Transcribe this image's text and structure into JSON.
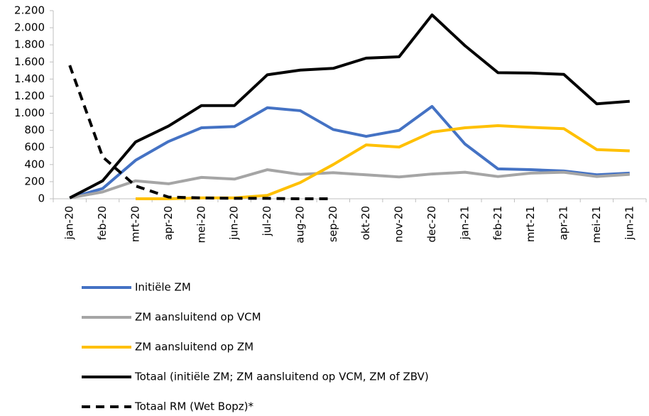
{
  "chart_data": {
    "type": "line",
    "categories": [
      "jan-20",
      "feb-20",
      "mrt-20",
      "apr-20",
      "mei-20",
      "jun-20",
      "jul-20",
      "aug-20",
      "sep-20",
      "okt-20",
      "nov-20",
      "dec-20",
      "jan-21",
      "feb-21",
      "mrt-21",
      "apr-21",
      "mei-21",
      "jun-21"
    ],
    "series": [
      {
        "name": "Initiële ZM",
        "color": "#4472c4",
        "values": [
          10,
          120,
          450,
          670,
          830,
          845,
          1065,
          1030,
          810,
          730,
          800,
          1080,
          640,
          350,
          340,
          325,
          280,
          300
        ]
      },
      {
        "name": "ZM aansluitend op VCM",
        "color": "#a5a5a5",
        "values": [
          10,
          80,
          210,
          175,
          250,
          230,
          340,
          285,
          305,
          280,
          255,
          290,
          310,
          260,
          300,
          310,
          260,
          285
        ]
      },
      {
        "name": "ZM aansluitend op ZM",
        "color": "#ffc000",
        "values": [
          null,
          null,
          0,
          0,
          10,
          10,
          40,
          190,
          400,
          630,
          605,
          780,
          830,
          855,
          835,
          820,
          575,
          560
        ]
      },
      {
        "name": "Totaal (initiële ZM; ZM aansluitend op VCM, ZM of ZBV)",
        "color": "#000000",
        "values": [
          10,
          210,
          665,
          850,
          1090,
          1090,
          1450,
          1505,
          1525,
          1645,
          1660,
          2150,
          1790,
          1475,
          1470,
          1455,
          1110,
          1140
        ]
      },
      {
        "name": "Totaal RM (Wet Bopz)*",
        "color": "#000000",
        "dashed": true,
        "values": [
          1560,
          490,
          150,
          20,
          10,
          5,
          5,
          0,
          0,
          null,
          null,
          null,
          null,
          null,
          null,
          null,
          null,
          null
        ]
      }
    ],
    "ylim": [
      0,
      2200
    ],
    "yticks": [
      0,
      200,
      400,
      600,
      800,
      {
        "value": 1000,
        "label": "1.000"
      },
      {
        "value": 1200,
        "label": "1.200"
      },
      {
        "value": 1400,
        "label": "1.400"
      },
      {
        "value": 1600,
        "label": "1.600"
      },
      {
        "value": 1800,
        "label": "1.800"
      },
      {
        "value": 2000,
        "label": "2.000"
      },
      {
        "value": 2200,
        "label": "2.200"
      }
    ],
    "legend": "bottom"
  }
}
